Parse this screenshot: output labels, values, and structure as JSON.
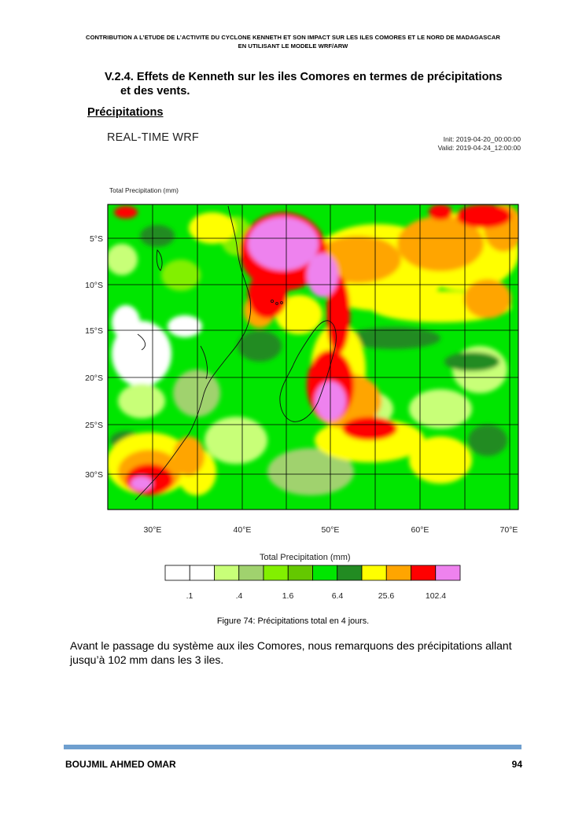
{
  "header": {
    "line1": "CONTRIBUTION A L’ETUDE DE L’ACTIVITE DU CYCLONE KENNETH ET SON IMPACT SUR LES ILES COMORES ET LE NORD DE MADAGASCAR",
    "line2": "EN UTILISANT LE MODELE WRF/ARW"
  },
  "section": {
    "line1": "V.2.4. Effets de Kenneth sur les iles Comores en termes de précipitations",
    "line2": "et des vents."
  },
  "subheading": "Précipitations",
  "figure": {
    "title": "REAL-TIME WRF",
    "init": "Init: 2019-04-20_00:00:00",
    "valid": "Valid: 2019-04-24_12:00:00",
    "field_label": "Total Precipitation   (mm)",
    "lat_ticks": [
      "5°S",
      "10°S",
      "15°S",
      "20°S",
      "25°S",
      "30°S"
    ],
    "lon_ticks": [
      "30°E",
      "40°E",
      "50°E",
      "60°E",
      "70°E"
    ],
    "legend_title": "Total Precipitation   (mm)",
    "legend_colors": [
      "#ffffff",
      "#ffffff",
      "#c8ff78",
      "#a0d26e",
      "#82f000",
      "#64c800",
      "#00e600",
      "#228b22",
      "#ffff00",
      "#ffa500",
      "#ff0000",
      "#ee82ee"
    ],
    "legend_labels": [
      ".1",
      ".4",
      "1.6",
      "6.4",
      "25.6",
      "102.4"
    ],
    "caption": "Figure 74: Précipitations total en 4 jours."
  },
  "body": "Avant le passage du système aux iles Comores, nous remarquons des précipitations allant jusqu’à 102 mm dans les 3 iles.",
  "footer": {
    "author": "BOUJMIL AHMED OMAR",
    "page": "94"
  }
}
